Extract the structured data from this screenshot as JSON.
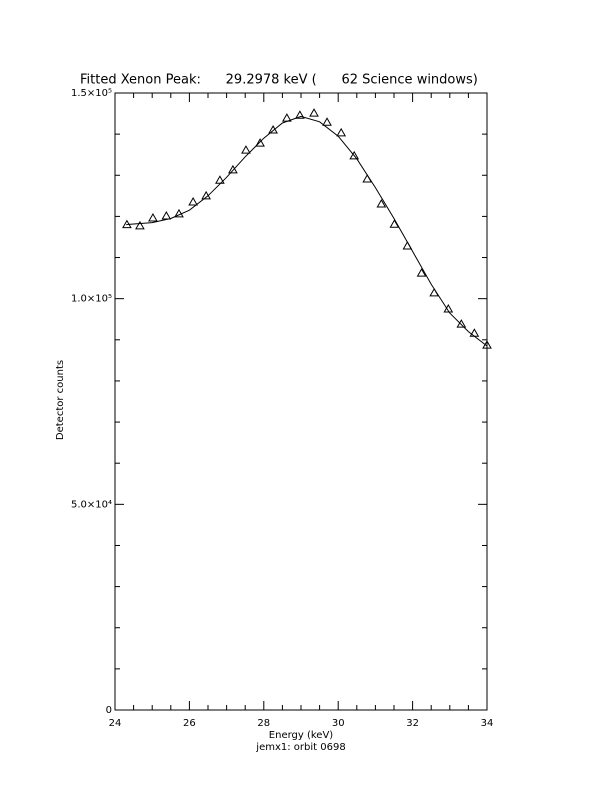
{
  "chart_data": {
    "type": "scatter",
    "title": "Fitted Xenon Peak:      29.2978 keV (      62 Science windows)",
    "x_label": "Energy (keV)",
    "subtitle": "jemx1: orbit 0698",
    "y_label": "Detector counts",
    "xlim": [
      24,
      34
    ],
    "xticks": [
      24,
      26,
      28,
      30,
      32,
      34
    ],
    "xminor": 4,
    "ylim": [
      0,
      150000
    ],
    "yticks": [
      0,
      {
        "value": 50000,
        "label": "5.0×10⁴"
      },
      {
        "value": 100000,
        "label": "1.0×10⁵"
      },
      {
        "value": 150000,
        "label": "1.5×10⁵"
      }
    ],
    "yminor": 5,
    "color": "#000000",
    "x": [
      24.32,
      24.67,
      25.02,
      25.38,
      25.72,
      26.1,
      26.45,
      26.82,
      27.17,
      27.52,
      27.9,
      28.25,
      28.62,
      28.97,
      29.35,
      29.7,
      30.08,
      30.43,
      30.78,
      31.16,
      31.51,
      31.86,
      32.24,
      32.58,
      32.96,
      33.31,
      33.66,
      34.0
    ],
    "values": [
      118000,
      117700,
      119600,
      120100,
      120600,
      123500,
      125000,
      128800,
      131300,
      136100,
      137800,
      141000,
      143900,
      144600,
      145100,
      142900,
      140300,
      134700,
      129100,
      123000,
      118100,
      112800,
      106200,
      101400,
      97500,
      93800,
      91600,
      88700
    ],
    "fit": {
      "x": [
        24.3,
        25,
        25.5,
        26,
        26.5,
        27,
        27.5,
        28,
        28.5,
        29,
        29.5,
        30,
        30.5,
        31,
        31.5,
        32,
        32.5,
        33,
        33.5,
        34
      ],
      "values": [
        118000,
        118500,
        119500,
        121500,
        125000,
        129500,
        134500,
        139000,
        142700,
        144300,
        143000,
        139500,
        134000,
        127000,
        119500,
        111500,
        103500,
        96500,
        92000,
        88500
      ]
    }
  }
}
